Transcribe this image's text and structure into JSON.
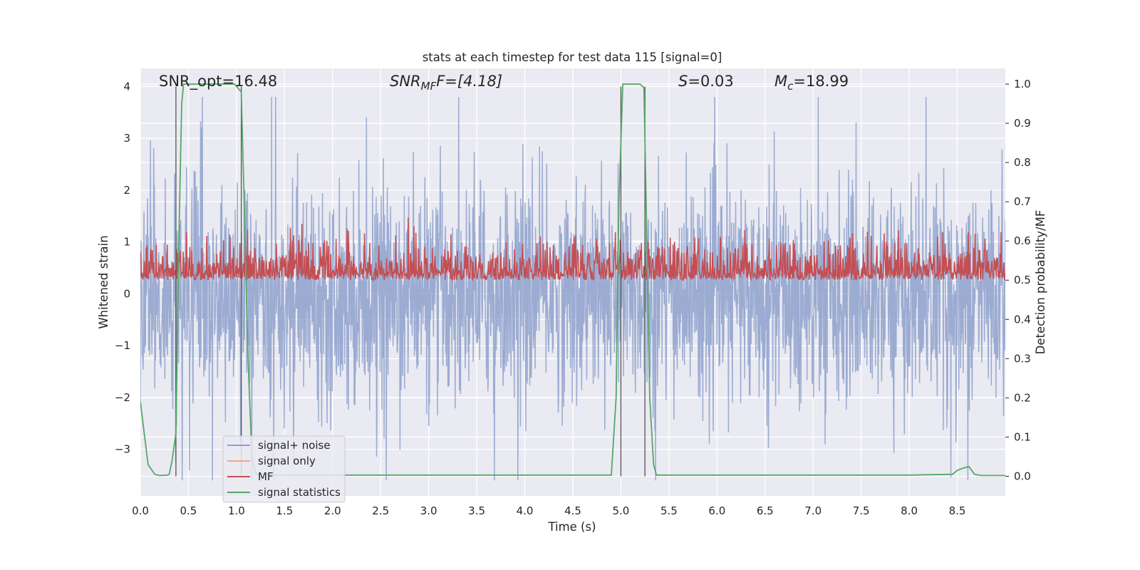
{
  "chart_data": {
    "type": "line",
    "title": "stats at each timestep for test data 115 [signal=0]",
    "xlabel": "Time (s)",
    "ylabel": "Whitened strain",
    "ylabel_right": "Detection probability/MF",
    "xlim": [
      0.0,
      9.0
    ],
    "ylim": [
      -3.9,
      4.35
    ],
    "ylim_right": [
      -0.05,
      1.04
    ],
    "grid": true,
    "legend_position": "lower-left",
    "xticks": [
      "0.0",
      "0.5",
      "1.0",
      "1.5",
      "2.0",
      "2.5",
      "3.0",
      "3.5",
      "4.0",
      "4.5",
      "5.0",
      "5.5",
      "6.0",
      "6.5",
      "7.0",
      "7.5",
      "8.0",
      "8.5"
    ],
    "xtick_values": [
      0,
      0.5,
      1,
      1.5,
      2,
      2.5,
      3,
      3.5,
      4,
      4.5,
      5,
      5.5,
      6,
      6.5,
      7,
      7.5,
      8,
      8.5
    ],
    "yticks": [
      "−3",
      "−2",
      "−1",
      "0",
      "1",
      "2",
      "3",
      "4"
    ],
    "ytick_values": [
      -3,
      -2,
      -1,
      0,
      1,
      2,
      3,
      4
    ],
    "yticks_right": [
      "0.0",
      "0.1",
      "0.2",
      "0.3",
      "0.4",
      "0.5",
      "0.6",
      "0.7",
      "0.8",
      "0.9",
      "1.0"
    ],
    "ytick_values_right": [
      0,
      0.1,
      0.2,
      0.3,
      0.4,
      0.5,
      0.6,
      0.7,
      0.8,
      0.9,
      1.0
    ],
    "annotations": {
      "snr_opt": "SNR_opt=16.48",
      "snr_mf_base": "SNR",
      "snr_mf_sub": "MF",
      "snr_mf_rest": "F=[4.18]",
      "s_var": "S",
      "s_val": "=0.03",
      "mc_var": "M",
      "mc_sub": "c",
      "mc_val": "=18.99"
    },
    "vertical_lines": [
      0.37,
      1.05,
      5.0,
      5.25
    ],
    "series": [
      {
        "name": "signal+ noise",
        "color": "#8da0cb",
        "description_range": [
          -3.6,
          3.8
        ]
      },
      {
        "name": "signal only",
        "color": "#f4a582",
        "values": []
      },
      {
        "name": "MF",
        "color": "#c44e52",
        "description_range": [
          0.0,
          0.95
        ]
      },
      {
        "name": "signal statistics",
        "color": "#55a868",
        "axis": "right",
        "x": [
          0.0,
          0.08,
          0.15,
          0.2,
          0.28,
          0.3,
          0.33,
          0.37,
          0.4,
          0.43,
          0.45,
          0.5,
          0.6,
          0.8,
          0.98,
          1.05,
          1.08,
          1.12,
          1.16,
          1.2,
          1.5,
          2.0,
          3.0,
          4.0,
          4.9,
          4.95,
          4.98,
          5.02,
          5.05,
          5.1,
          5.2,
          5.24,
          5.27,
          5.3,
          5.34,
          5.37,
          5.5,
          6.0,
          7.0,
          8.0,
          8.45,
          8.5,
          8.55,
          8.62,
          8.68,
          8.75,
          9.0
        ],
        "y": [
          0.19,
          0.03,
          0.005,
          0.002,
          0.003,
          0.005,
          0.04,
          0.11,
          0.6,
          0.95,
          1.0,
          1.0,
          1.0,
          1.0,
          1.0,
          0.98,
          0.7,
          0.3,
          0.05,
          0.005,
          0.003,
          0.003,
          0.003,
          0.003,
          0.003,
          0.2,
          0.7,
          1.0,
          1.0,
          1.0,
          1.0,
          0.99,
          0.6,
          0.2,
          0.03,
          0.003,
          0.003,
          0.003,
          0.003,
          0.003,
          0.005,
          0.015,
          0.02,
          0.025,
          0.005,
          0.002,
          0.002
        ]
      }
    ]
  }
}
